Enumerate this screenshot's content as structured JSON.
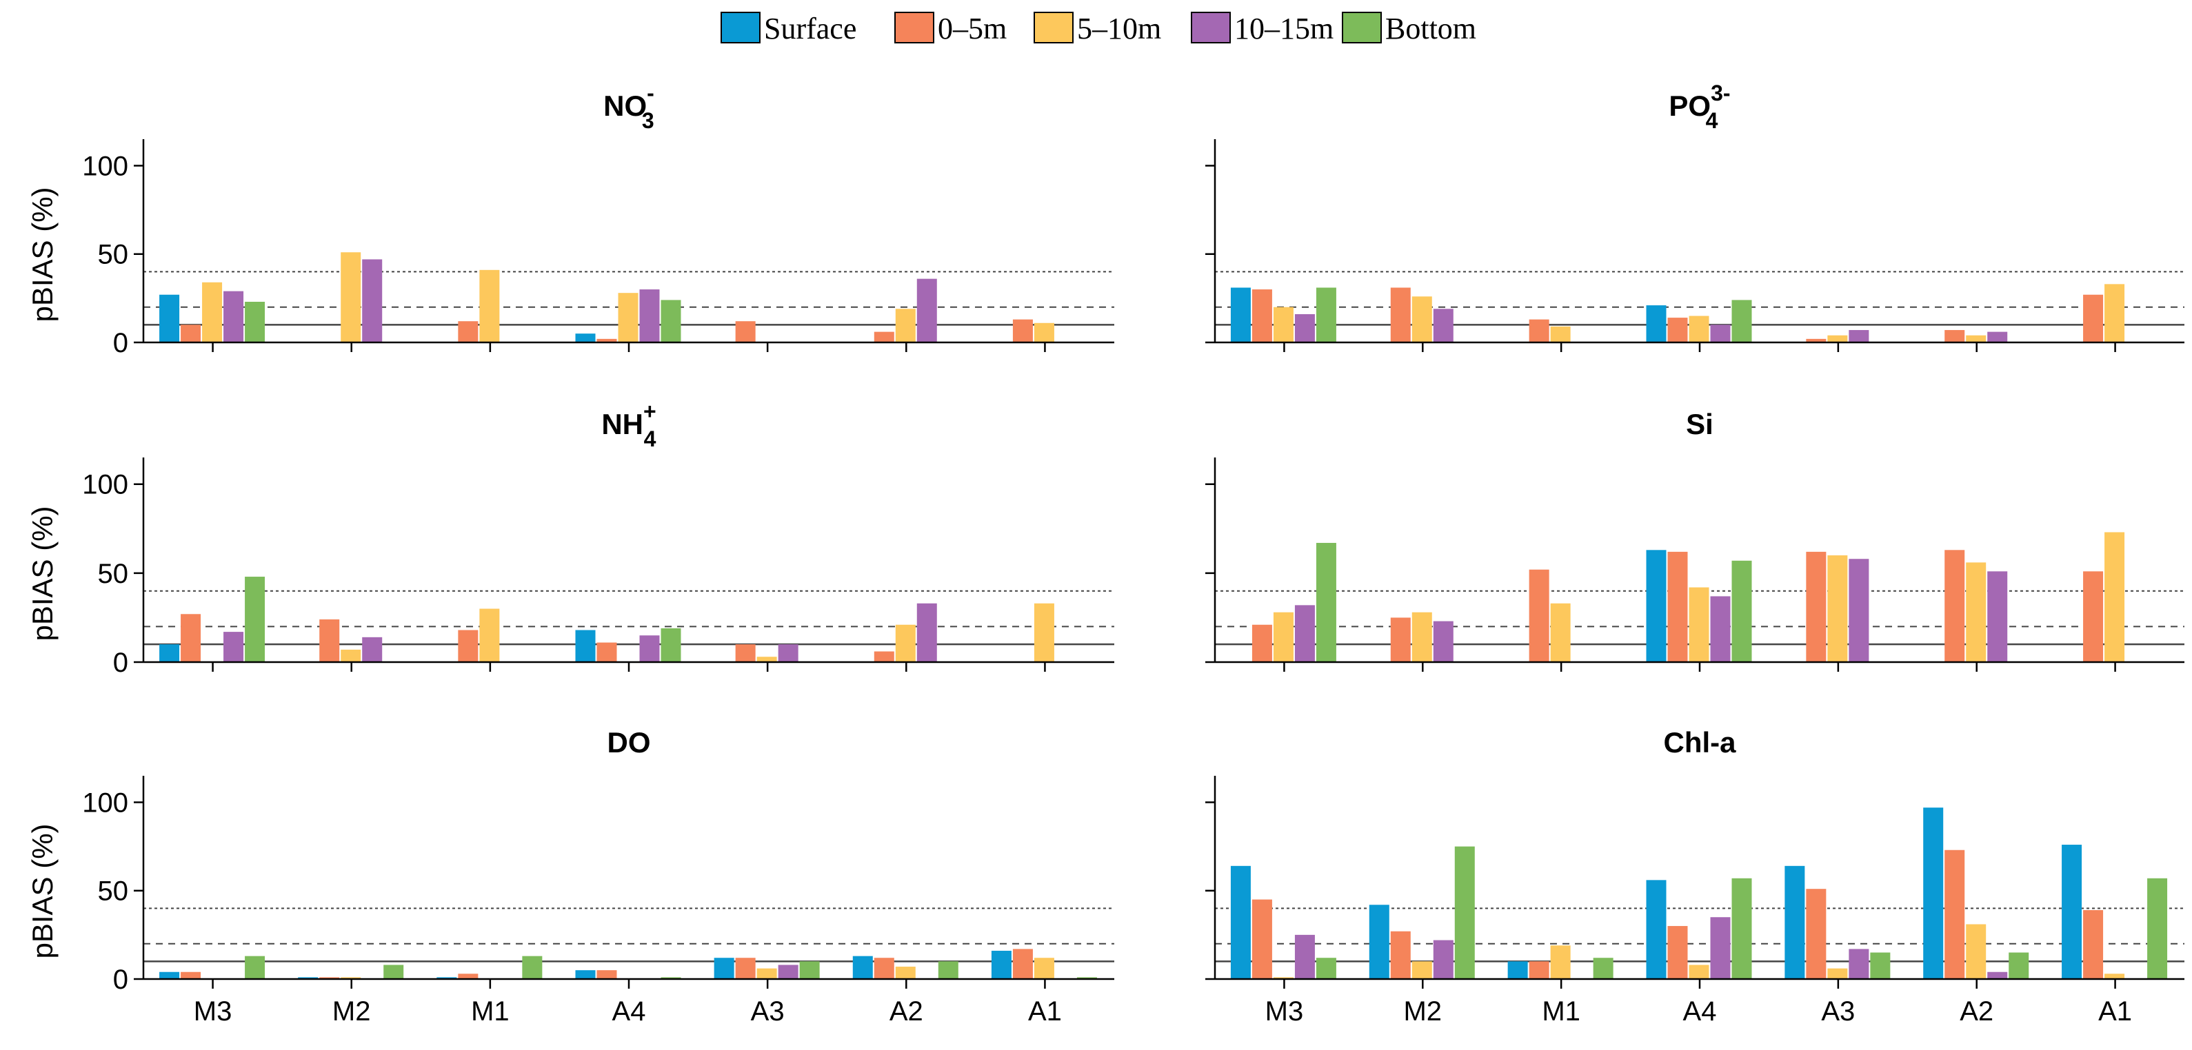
{
  "legend": {
    "position": "top-center",
    "entries": [
      {
        "label": "Surface",
        "color": "#0a9ad4"
      },
      {
        "label": "0–5m",
        "color": "#f5845a"
      },
      {
        "label": "5–10m",
        "color": "#fdc85c"
      },
      {
        "label": "10–15m",
        "color": "#a468b3"
      },
      {
        "label": "Bottom",
        "color": "#7dbb5a"
      }
    ]
  },
  "chart_data": [
    {
      "type": "bar",
      "title": "NO3-",
      "title_main": "NO",
      "title_sub": "3",
      "title_sup": "-",
      "ylabel": "pBIAS (%)",
      "ylim": [
        0,
        115
      ],
      "yticks": [
        "0",
        "50",
        "100"
      ],
      "reference_lines": [
        {
          "y": 10,
          "style": "solid"
        },
        {
          "y": 20,
          "style": "dashed"
        },
        {
          "y": 40,
          "style": "dotted"
        }
      ],
      "categories": [
        "M3",
        "M2",
        "M1",
        "A4",
        "A3",
        "A2",
        "A1"
      ],
      "series": [
        {
          "name": "Surface",
          "values": [
            27,
            0,
            0,
            5,
            0,
            0,
            0
          ]
        },
        {
          "name": "0–5m",
          "values": [
            10,
            0,
            12,
            2,
            12,
            6,
            13
          ]
        },
        {
          "name": "5–10m",
          "values": [
            34,
            51,
            41,
            28,
            0,
            19,
            11
          ]
        },
        {
          "name": "10–15m",
          "values": [
            29,
            47,
            0,
            30,
            0,
            36,
            0
          ]
        },
        {
          "name": "Bottom",
          "values": [
            23,
            0,
            0,
            24,
            0,
            0,
            0
          ]
        }
      ]
    },
    {
      "type": "bar",
      "title": "PO43-",
      "title_main": "PO",
      "title_sub": "4",
      "title_sup": "3-",
      "ylabel": "",
      "ylim": [
        0,
        115
      ],
      "yticks": [],
      "reference_lines": [
        {
          "y": 10,
          "style": "solid"
        },
        {
          "y": 20,
          "style": "dashed"
        },
        {
          "y": 40,
          "style": "dotted"
        }
      ],
      "categories": [
        "M3",
        "M2",
        "M1",
        "A4",
        "A3",
        "A2",
        "A1"
      ],
      "series": [
        {
          "name": "Surface",
          "values": [
            31,
            0,
            0,
            21,
            0,
            0,
            0
          ]
        },
        {
          "name": "0–5m",
          "values": [
            30,
            31,
            13,
            14,
            2,
            7,
            27
          ]
        },
        {
          "name": "5–10m",
          "values": [
            20,
            26,
            9,
            15,
            4,
            4,
            33
          ]
        },
        {
          "name": "10–15m",
          "values": [
            16,
            19,
            0,
            10,
            7,
            6,
            0
          ]
        },
        {
          "name": "Bottom",
          "values": [
            31,
            0,
            0,
            24,
            0,
            0,
            0
          ]
        }
      ]
    },
    {
      "type": "bar",
      "title": "NH4+",
      "title_main": "NH",
      "title_sub": "4",
      "title_sup": "+",
      "ylabel": "pBIAS (%)",
      "ylim": [
        0,
        115
      ],
      "yticks": [
        "0",
        "50",
        "100"
      ],
      "reference_lines": [
        {
          "y": 10,
          "style": "solid"
        },
        {
          "y": 20,
          "style": "dashed"
        },
        {
          "y": 40,
          "style": "dotted"
        }
      ],
      "categories": [
        "M3",
        "M2",
        "M1",
        "A4",
        "A3",
        "A2",
        "A1"
      ],
      "series": [
        {
          "name": "Surface",
          "values": [
            10,
            0,
            0,
            18,
            0,
            0,
            0
          ]
        },
        {
          "name": "0–5m",
          "values": [
            27,
            24,
            18,
            11,
            10,
            6,
            0
          ]
        },
        {
          "name": "5–10m",
          "values": [
            0,
            7,
            30,
            0,
            3,
            21,
            33
          ]
        },
        {
          "name": "10–15m",
          "values": [
            17,
            14,
            0,
            15,
            10,
            33,
            0
          ]
        },
        {
          "name": "Bottom",
          "values": [
            48,
            0,
            0,
            19,
            0,
            0,
            0
          ]
        }
      ]
    },
    {
      "type": "bar",
      "title": "Si",
      "title_main": "Si",
      "title_sub": "",
      "title_sup": "",
      "ylabel": "",
      "ylim": [
        0,
        115
      ],
      "yticks": [],
      "reference_lines": [
        {
          "y": 10,
          "style": "solid"
        },
        {
          "y": 20,
          "style": "dashed"
        },
        {
          "y": 40,
          "style": "dotted"
        }
      ],
      "categories": [
        "M3",
        "M2",
        "M1",
        "A4",
        "A3",
        "A2",
        "A1"
      ],
      "series": [
        {
          "name": "Surface",
          "values": [
            0,
            0,
            0,
            63,
            0,
            0,
            0
          ]
        },
        {
          "name": "0–5m",
          "values": [
            21,
            25,
            52,
            62,
            62,
            63,
            51
          ]
        },
        {
          "name": "5–10m",
          "values": [
            28,
            28,
            33,
            42,
            60,
            56,
            73
          ]
        },
        {
          "name": "10–15m",
          "values": [
            32,
            23,
            0,
            37,
            58,
            51,
            0
          ]
        },
        {
          "name": "Bottom",
          "values": [
            67,
            0,
            0,
            57,
            0,
            0,
            0
          ]
        }
      ]
    },
    {
      "type": "bar",
      "title": "DO",
      "title_main": "DO",
      "title_sub": "",
      "title_sup": "",
      "ylabel": "pBIAS (%)",
      "ylim": [
        0,
        115
      ],
      "yticks": [
        "0",
        "50",
        "100"
      ],
      "reference_lines": [
        {
          "y": 10,
          "style": "solid"
        },
        {
          "y": 20,
          "style": "dashed"
        },
        {
          "y": 40,
          "style": "dotted"
        }
      ],
      "categories": [
        "M3",
        "M2",
        "M1",
        "A4",
        "A3",
        "A2",
        "A1"
      ],
      "series": [
        {
          "name": "Surface",
          "values": [
            4,
            1,
            1,
            5,
            12,
            13,
            16
          ]
        },
        {
          "name": "0–5m",
          "values": [
            4,
            1,
            3,
            5,
            12,
            12,
            17
          ]
        },
        {
          "name": "5–10m",
          "values": [
            0,
            1,
            0,
            0,
            6,
            7,
            12
          ]
        },
        {
          "name": "10–15m",
          "values": [
            0,
            0,
            0,
            0,
            8,
            0,
            0
          ]
        },
        {
          "name": "Bottom",
          "values": [
            13,
            8,
            13,
            1,
            10,
            10,
            1
          ]
        }
      ]
    },
    {
      "type": "bar",
      "title": "Chl-a",
      "title_main": "Chl-a",
      "title_sub": "",
      "title_sup": "",
      "ylabel": "",
      "ylim": [
        0,
        115
      ],
      "yticks": [],
      "reference_lines": [
        {
          "y": 10,
          "style": "solid"
        },
        {
          "y": 20,
          "style": "dashed"
        },
        {
          "y": 40,
          "style": "dotted"
        }
      ],
      "categories": [
        "M3",
        "M2",
        "M1",
        "A4",
        "A3",
        "A2",
        "A1"
      ],
      "series": [
        {
          "name": "Surface",
          "values": [
            64,
            42,
            10,
            56,
            64,
            97,
            76
          ]
        },
        {
          "name": "0–5m",
          "values": [
            45,
            27,
            10,
            30,
            51,
            73,
            39
          ]
        },
        {
          "name": "5–10m",
          "values": [
            1,
            10,
            19,
            8,
            6,
            31,
            3
          ]
        },
        {
          "name": "10–15m",
          "values": [
            25,
            22,
            0,
            35,
            17,
            4,
            0
          ]
        },
        {
          "name": "Bottom",
          "values": [
            12,
            75,
            12,
            57,
            15,
            15,
            57
          ]
        }
      ]
    }
  ]
}
